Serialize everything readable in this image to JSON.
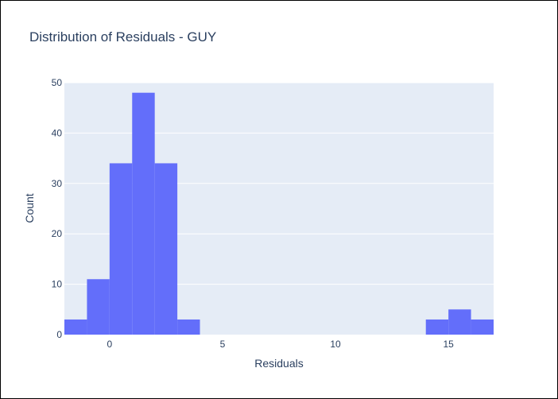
{
  "chart_data": {
    "type": "bar",
    "title": "Distribution of Residuals - GUY",
    "xlabel": "Residuals",
    "ylabel": "Count",
    "xlim": [
      -2,
      17
    ],
    "ylim": [
      0,
      50
    ],
    "x_ticks": [
      0,
      5,
      10,
      15
    ],
    "y_ticks": [
      0,
      10,
      20,
      30,
      40,
      50
    ],
    "bin_width": 1,
    "bins": [
      {
        "start": -2,
        "end": -1,
        "count": 3
      },
      {
        "start": -1,
        "end": 0,
        "count": 11
      },
      {
        "start": 0,
        "end": 1,
        "count": 34
      },
      {
        "start": 1,
        "end": 2,
        "count": 48
      },
      {
        "start": 2,
        "end": 3,
        "count": 34
      },
      {
        "start": 3,
        "end": 4,
        "count": 3
      },
      {
        "start": 14,
        "end": 15,
        "count": 3
      },
      {
        "start": 15,
        "end": 16,
        "count": 5
      },
      {
        "start": 16,
        "end": 17,
        "count": 3
      }
    ],
    "bar_color": "#636efa",
    "plot_bgcolor": "#e5ecf6",
    "grid": true
  }
}
